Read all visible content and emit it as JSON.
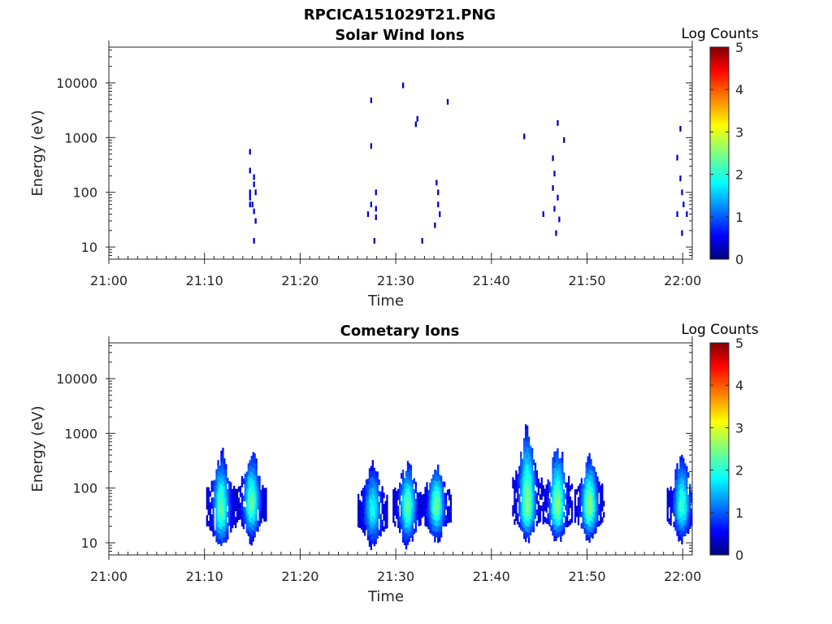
{
  "figure_title": "RPCICA151029T21.PNG",
  "colorbar": {
    "label": "Log Counts",
    "range": [
      0,
      5
    ],
    "ticks": [
      "0",
      "1",
      "2",
      "3",
      "4",
      "5"
    ],
    "colormap": "jet"
  },
  "chart_data": [
    {
      "type": "heatmap",
      "title": "Solar Wind Ions",
      "xlabel": "Time",
      "ylabel": "Energy (eV)",
      "y_scale": "log",
      "xlim": [
        "21:00",
        "22:01"
      ],
      "ylim": [
        6,
        45000
      ],
      "x_ticks": [
        "21:00",
        "21:10",
        "21:20",
        "21:30",
        "21:40",
        "21:50",
        "22:00"
      ],
      "y_ticks": [
        "10",
        "100",
        "1000",
        "10000"
      ],
      "colorbar_label": "Log Counts",
      "cells": [
        [
          "21:14:40",
          550,
          0.3
        ],
        [
          "21:14:40",
          250,
          0.3
        ],
        [
          "21:14:40",
          100,
          0.4
        ],
        [
          "21:14:40",
          80,
          0.4
        ],
        [
          "21:14:40",
          60,
          0.4
        ],
        [
          "21:14:55",
          60,
          0.5
        ],
        [
          "21:15:05",
          190,
          0.4
        ],
        [
          "21:15:05",
          140,
          0.4
        ],
        [
          "21:15:05",
          45,
          0.5
        ],
        [
          "21:15:15",
          100,
          0.4
        ],
        [
          "21:15:15",
          30,
          0.4
        ],
        [
          "21:15:05",
          13,
          0.3
        ],
        [
          "21:27:20",
          4800,
          0.3
        ],
        [
          "21:27:20",
          700,
          0.3
        ],
        [
          "21:27:00",
          40,
          0.4
        ],
        [
          "21:27:20",
          60,
          0.4
        ],
        [
          "21:27:50",
          100,
          0.3
        ],
        [
          "21:27:50",
          50,
          0.4
        ],
        [
          "21:27:50",
          35,
          0.4
        ],
        [
          "21:27:40",
          13,
          0.3
        ],
        [
          "21:30:40",
          9000,
          0.3
        ],
        [
          "21:32:10",
          2200,
          0.3
        ],
        [
          "21:32:00",
          1750,
          0.3
        ],
        [
          "21:35:20",
          4500,
          0.3
        ],
        [
          "21:34:10",
          150,
          0.3
        ],
        [
          "21:34:20",
          100,
          0.4
        ],
        [
          "21:34:20",
          60,
          0.5
        ],
        [
          "21:34:30",
          40,
          0.5
        ],
        [
          "21:34:00",
          25,
          0.4
        ],
        [
          "21:32:40",
          13,
          0.3
        ],
        [
          "21:43:20",
          1050,
          0.3
        ],
        [
          "21:46:50",
          1850,
          0.3
        ],
        [
          "21:47:30",
          900,
          0.3
        ],
        [
          "21:46:20",
          420,
          0.3
        ],
        [
          "21:46:30",
          220,
          0.4
        ],
        [
          "21:46:20",
          120,
          0.4
        ],
        [
          "21:46:50",
          80,
          0.4
        ],
        [
          "21:46:30",
          50,
          0.5
        ],
        [
          "21:45:20",
          40,
          0.4
        ],
        [
          "21:47:00",
          32,
          0.5
        ],
        [
          "21:46:40",
          18,
          0.4
        ],
        [
          "21:59:40",
          1450,
          0.3
        ],
        [
          "21:59:20",
          430,
          0.3
        ],
        [
          "21:59:40",
          180,
          0.4
        ],
        [
          "21:59:50",
          100,
          0.4
        ],
        [
          "22:00:00",
          60,
          0.5
        ],
        [
          "22:00:20",
          40,
          0.5
        ],
        [
          "21:59:20",
          40,
          0.4
        ],
        [
          "21:59:50",
          18,
          0.4
        ]
      ]
    },
    {
      "type": "heatmap",
      "title": "Cometary Ions",
      "xlabel": "Time",
      "ylabel": "Energy (eV)",
      "y_scale": "log",
      "xlim": [
        "21:00",
        "22:01"
      ],
      "ylim": [
        6,
        45000
      ],
      "x_ticks": [
        "21:00",
        "21:10",
        "21:20",
        "21:30",
        "21:40",
        "21:50",
        "22:00"
      ],
      "y_ticks": [
        "10",
        "100",
        "1000",
        "10000"
      ],
      "colorbar_label": "Log Counts",
      "bursts": [
        {
          "center": "21:11:40",
          "peak_energy": 40,
          "max_energy": 550,
          "min_energy": 7,
          "peak_log_counts": 2.0
        },
        {
          "center": "21:14:50",
          "peak_energy": 50,
          "max_energy": 600,
          "min_energy": 10,
          "peak_log_counts": 2.0
        },
        {
          "center": "21:27:30",
          "peak_energy": 40,
          "max_energy": 350,
          "min_energy": 7,
          "peak_log_counts": 1.6
        },
        {
          "center": "21:31:10",
          "peak_energy": 45,
          "max_energy": 350,
          "min_energy": 8,
          "peak_log_counts": 2.0
        },
        {
          "center": "21:34:10",
          "peak_energy": 45,
          "max_energy": 350,
          "min_energy": 10,
          "peak_log_counts": 2.0
        },
        {
          "center": "21:43:40",
          "peak_energy": 45,
          "max_energy": 2000,
          "min_energy": 10,
          "peak_log_counts": 2.2
        },
        {
          "center": "21:46:50",
          "peak_energy": 45,
          "max_energy": 800,
          "min_energy": 10,
          "peak_log_counts": 2.2
        },
        {
          "center": "21:50:10",
          "peak_energy": 45,
          "max_energy": 500,
          "min_energy": 10,
          "peak_log_counts": 2.2
        },
        {
          "center": "21:59:50",
          "peak_energy": 45,
          "max_energy": 550,
          "min_energy": 10,
          "peak_log_counts": 1.8
        }
      ]
    }
  ]
}
